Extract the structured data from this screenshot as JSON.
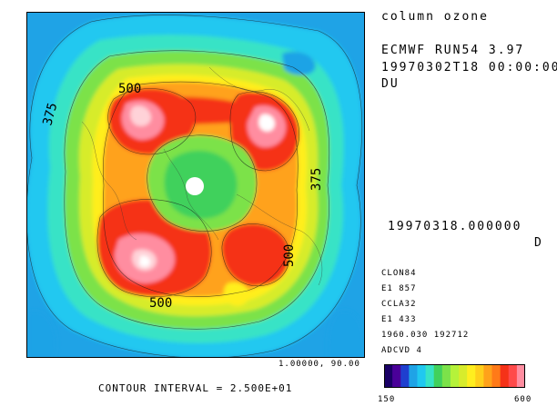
{
  "title": {
    "field": "column ozone",
    "run": "ECMWF RUN54 3.97",
    "datetime": "19970302T18 00:00:00",
    "units": "DU"
  },
  "map": {
    "projection_label": "1.00000, 90.00",
    "contour_labels": [
      "375",
      "500",
      "375",
      "500",
      "500"
    ],
    "colors": {
      "ocean_background": "#1fa3e6",
      "levels": [
        "#1fa3e6",
        "#20c8f0",
        "#37e3c6",
        "#7be24a",
        "#d7ec2c",
        "#ffee1f",
        "#ffcf1b",
        "#ffa21a",
        "#ff7a18",
        "#f53218",
        "#ff4a4a",
        "#f58aa0",
        "#ffd2d8",
        "#ffffff"
      ]
    }
  },
  "contour_interval": "CONTOUR INTERVAL = 2.500E+01",
  "info": {
    "date_code": "19970318.000000",
    "d_label": "D",
    "lines": [
      "CLON84",
      "E1 857",
      "CCLA32",
      "E1 433",
      "1960.030 192712",
      "ADCVD 4"
    ]
  },
  "colorbar": {
    "min_label": "150",
    "max_label": "600",
    "colors": [
      "#1a0066",
      "#4a0099",
      "#1f3fcf",
      "#1fa3e6",
      "#20c8f0",
      "#37e3c6",
      "#41d15c",
      "#7be24a",
      "#b5f23a",
      "#d7ec2c",
      "#ffee1f",
      "#ffcf1b",
      "#ffa21a",
      "#ff7a18",
      "#f53218",
      "#ff4a4a",
      "#ff8da0"
    ]
  }
}
